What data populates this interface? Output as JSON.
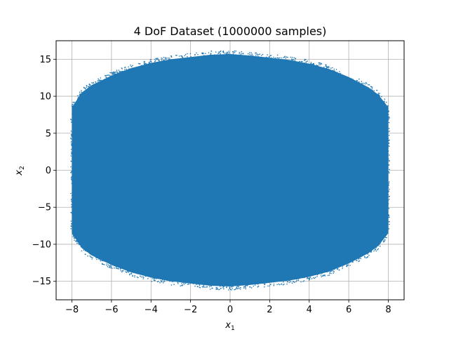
{
  "chart_data": {
    "type": "scatter",
    "title": "4 DoF Dataset (1000000 samples)",
    "xlabel_base": "x",
    "xlabel_sub": "1",
    "ylabel_base": "x",
    "ylabel_sub": "2",
    "xlim": [
      -8.8,
      8.8
    ],
    "ylim": [
      -17.5,
      17.5
    ],
    "xticks": [
      -8,
      -6,
      -4,
      -2,
      0,
      2,
      4,
      6,
      8
    ],
    "yticks": [
      -15,
      -10,
      -5,
      0,
      5,
      10,
      15
    ],
    "xtick_labels": [
      "−8",
      "−6",
      "−4",
      "−2",
      "0",
      "2",
      "4",
      "6",
      "8"
    ],
    "ytick_labels": [
      "−15",
      "−10",
      "−5",
      "0",
      "5",
      "10",
      "15"
    ],
    "grid": true,
    "marker_color": "#1f77b4",
    "region": {
      "x_range": [
        -8,
        8
      ],
      "y_extent_at_x": [
        {
          "x": -8.0,
          "y_max": 8.5
        },
        {
          "x": -7.5,
          "y_max": 10.5
        },
        {
          "x": -7.0,
          "y_max": 11.5
        },
        {
          "x": -6.0,
          "y_max": 12.8
        },
        {
          "x": -5.0,
          "y_max": 13.8
        },
        {
          "x": -4.0,
          "y_max": 14.5
        },
        {
          "x": -3.0,
          "y_max": 15.0
        },
        {
          "x": -2.0,
          "y_max": 15.3
        },
        {
          "x": -1.0,
          "y_max": 15.6
        },
        {
          "x": 0.0,
          "y_max": 15.7
        },
        {
          "x": 1.0,
          "y_max": 15.5
        },
        {
          "x": 2.0,
          "y_max": 15.2
        },
        {
          "x": 3.0,
          "y_max": 14.9
        },
        {
          "x": 4.0,
          "y_max": 14.4
        },
        {
          "x": 5.0,
          "y_max": 13.7
        },
        {
          "x": 6.0,
          "y_max": 12.6
        },
        {
          "x": 7.0,
          "y_max": 11.2
        },
        {
          "x": 7.5,
          "y_max": 10.2
        },
        {
          "x": 8.0,
          "y_max": 8.5
        }
      ],
      "symmetric_y": true
    }
  }
}
